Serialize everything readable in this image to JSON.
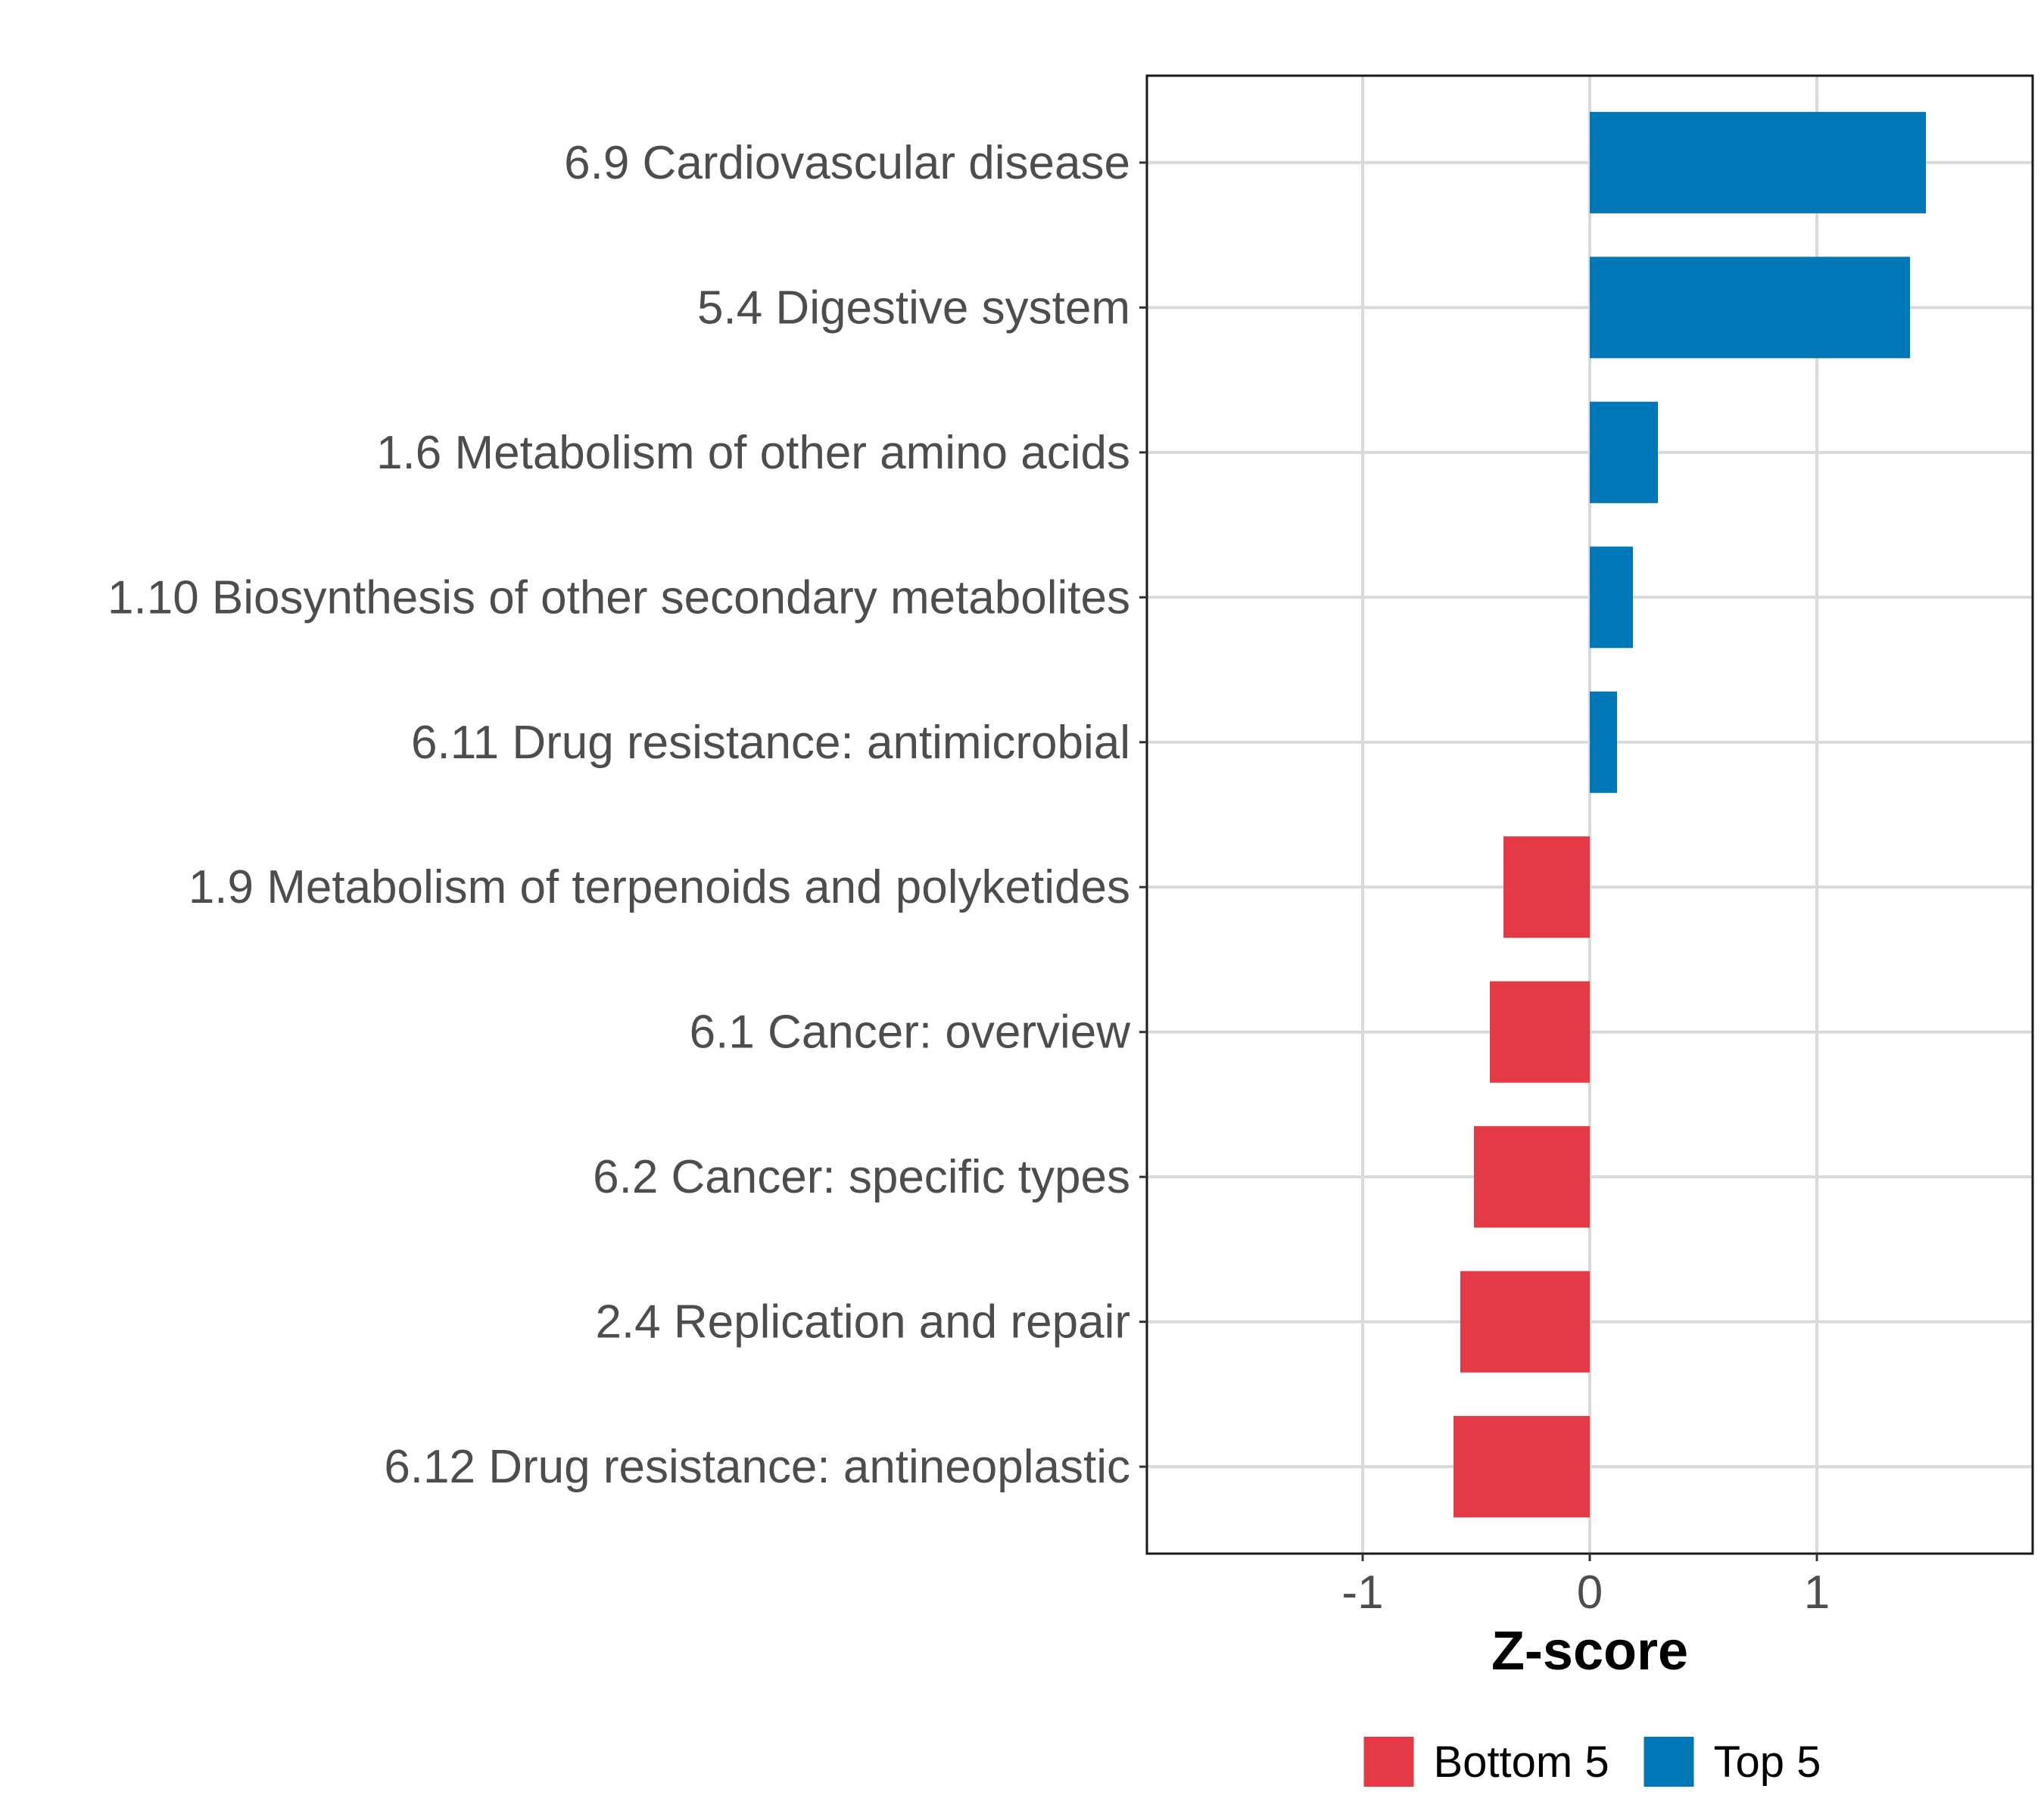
{
  "chart_data": {
    "type": "bar",
    "orientation": "horizontal",
    "xlabel": "Z-score",
    "ylabel": "",
    "xlim": [
      -1.95,
      1.95
    ],
    "xticks": [
      -1,
      0,
      1
    ],
    "xtick_labels": [
      "-1",
      "0",
      "1"
    ],
    "grid": true,
    "legend_position": "bottom",
    "categories": [
      "6.9 Cardiovascular disease",
      "5.4 Digestive system",
      "1.6 Metabolism of other amino acids",
      "1.10 Biosynthesis of other secondary metabolites",
      "6.11 Drug resistance: antimicrobial",
      "1.9 Metabolism of terpenoids and polyketides",
      "6.1 Cancer: overview",
      "6.2 Cancer: specific types",
      "2.4 Replication and repair",
      "6.12 Drug resistance: antineoplastic"
    ],
    "values": [
      1.48,
      1.41,
      0.3,
      0.19,
      0.12,
      -0.38,
      -0.44,
      -0.51,
      -0.57,
      -0.6
    ],
    "groups": [
      "Top 5",
      "Top 5",
      "Top 5",
      "Top 5",
      "Top 5",
      "Bottom 5",
      "Bottom 5",
      "Bottom 5",
      "Bottom 5",
      "Bottom 5"
    ],
    "legend": [
      {
        "label": "Bottom 5",
        "color": "#e63946"
      },
      {
        "label": "Top 5",
        "color": "#0077b6"
      }
    ],
    "colors": {
      "Top 5": "#0077b6",
      "Bottom 5": "#e63946"
    }
  }
}
